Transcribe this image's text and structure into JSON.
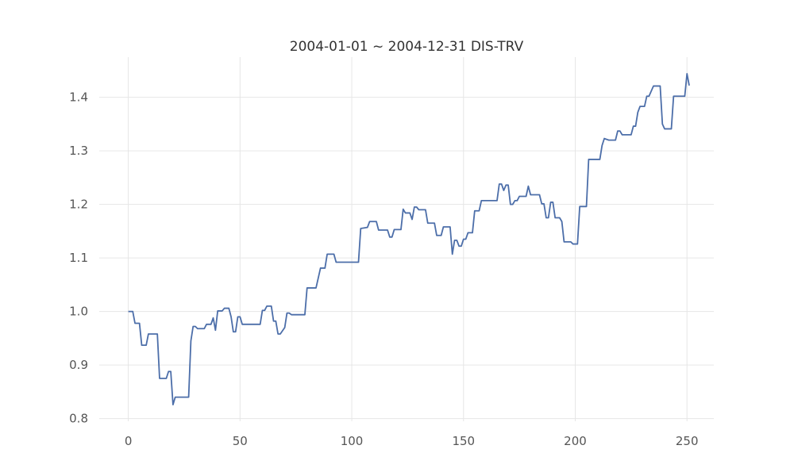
{
  "chart_data": {
    "type": "line",
    "title": "2004-01-01 ~ 2004-12-31 DIS-TRV",
    "xlabel": "",
    "ylabel": "",
    "xlim": [
      -13,
      262
    ],
    "ylim": [
      0.795,
      1.475
    ],
    "grid": true,
    "line_color": "#4c6ea9",
    "x_ticks": [
      0,
      50,
      100,
      150,
      200,
      250
    ],
    "y_ticks": [
      0.8,
      0.9,
      1.0,
      1.1,
      1.2,
      1.3,
      1.4
    ],
    "x_tick_labels": [
      "0",
      "50",
      "100",
      "150",
      "200",
      "250"
    ],
    "y_tick_labels": [
      "0.8",
      "0.9",
      "1.0",
      "1.1",
      "1.2",
      "1.3",
      "1.4"
    ],
    "series": [
      {
        "name": "",
        "points": [
          [
            0,
            1.0
          ],
          [
            2,
            1.0
          ],
          [
            3,
            0.978
          ],
          [
            5,
            0.978
          ],
          [
            6,
            0.937
          ],
          [
            8,
            0.937
          ],
          [
            9,
            0.958
          ],
          [
            13,
            0.958
          ],
          [
            14,
            0.875
          ],
          [
            17,
            0.875
          ],
          [
            18,
            0.888
          ],
          [
            19,
            0.888
          ],
          [
            20,
            0.826
          ],
          [
            21,
            0.84
          ],
          [
            27,
            0.84
          ],
          [
            28,
            0.945
          ],
          [
            29,
            0.972
          ],
          [
            30,
            0.972
          ],
          [
            31,
            0.968
          ],
          [
            34,
            0.968
          ],
          [
            35,
            0.976
          ],
          [
            37,
            0.976
          ],
          [
            38,
            0.988
          ],
          [
            39,
            0.965
          ],
          [
            40,
            1.001
          ],
          [
            42,
            1.001
          ],
          [
            43,
            1.006
          ],
          [
            45,
            1.006
          ],
          [
            46,
            0.99
          ],
          [
            47,
            0.962
          ],
          [
            48,
            0.962
          ],
          [
            49,
            0.99
          ],
          [
            50,
            0.99
          ],
          [
            51,
            0.976
          ],
          [
            59,
            0.976
          ],
          [
            60,
            1.002
          ],
          [
            61,
            1.002
          ],
          [
            62,
            1.01
          ],
          [
            64,
            1.01
          ],
          [
            65,
            0.982
          ],
          [
            66,
            0.982
          ],
          [
            67,
            0.958
          ],
          [
            68,
            0.958
          ],
          [
            70,
            0.97
          ],
          [
            71,
            0.997
          ],
          [
            72,
            0.997
          ],
          [
            73,
            0.994
          ],
          [
            79,
            0.994
          ],
          [
            80,
            1.044
          ],
          [
            84,
            1.044
          ],
          [
            86,
            1.081
          ],
          [
            88,
            1.081
          ],
          [
            89,
            1.107
          ],
          [
            92,
            1.107
          ],
          [
            93,
            1.092
          ],
          [
            103,
            1.092
          ],
          [
            104,
            1.155
          ],
          [
            107,
            1.157
          ],
          [
            108,
            1.168
          ],
          [
            111,
            1.168
          ],
          [
            112,
            1.152
          ],
          [
            116,
            1.152
          ],
          [
            117,
            1.139
          ],
          [
            118,
            1.139
          ],
          [
            119,
            1.153
          ],
          [
            122,
            1.153
          ],
          [
            123,
            1.191
          ],
          [
            124,
            1.184
          ],
          [
            126,
            1.184
          ],
          [
            127,
            1.172
          ],
          [
            128,
            1.195
          ],
          [
            129,
            1.195
          ],
          [
            130,
            1.19
          ],
          [
            133,
            1.19
          ],
          [
            134,
            1.165
          ],
          [
            137,
            1.165
          ],
          [
            138,
            1.142
          ],
          [
            140,
            1.142
          ],
          [
            141,
            1.158
          ],
          [
            144,
            1.158
          ],
          [
            145,
            1.107
          ],
          [
            146,
            1.133
          ],
          [
            147,
            1.133
          ],
          [
            148,
            1.122
          ],
          [
            149,
            1.122
          ],
          [
            150,
            1.135
          ],
          [
            151,
            1.135
          ],
          [
            152,
            1.147
          ],
          [
            154,
            1.147
          ],
          [
            155,
            1.188
          ],
          [
            157,
            1.188
          ],
          [
            158,
            1.207
          ],
          [
            165,
            1.207
          ],
          [
            166,
            1.238
          ],
          [
            167,
            1.238
          ],
          [
            168,
            1.226
          ],
          [
            169,
            1.236
          ],
          [
            170,
            1.236
          ],
          [
            171,
            1.2
          ],
          [
            172,
            1.2
          ],
          [
            173,
            1.207
          ],
          [
            174,
            1.207
          ],
          [
            175,
            1.215
          ],
          [
            178,
            1.215
          ],
          [
            179,
            1.234
          ],
          [
            180,
            1.218
          ],
          [
            184,
            1.218
          ],
          [
            185,
            1.201
          ],
          [
            186,
            1.201
          ],
          [
            187,
            1.175
          ],
          [
            188,
            1.175
          ],
          [
            189,
            1.204
          ],
          [
            190,
            1.204
          ],
          [
            191,
            1.175
          ],
          [
            193,
            1.175
          ],
          [
            194,
            1.168
          ],
          [
            195,
            1.13
          ],
          [
            198,
            1.13
          ],
          [
            199,
            1.126
          ],
          [
            201,
            1.126
          ],
          [
            202,
            1.196
          ],
          [
            205,
            1.196
          ],
          [
            206,
            1.284
          ],
          [
            211,
            1.284
          ],
          [
            212,
            1.31
          ],
          [
            213,
            1.323
          ],
          [
            215,
            1.32
          ],
          [
            218,
            1.32
          ],
          [
            219,
            1.337
          ],
          [
            220,
            1.337
          ],
          [
            221,
            1.33
          ],
          [
            225,
            1.33
          ],
          [
            226,
            1.346
          ],
          [
            227,
            1.346
          ],
          [
            228,
            1.372
          ],
          [
            229,
            1.383
          ],
          [
            231,
            1.383
          ],
          [
            232,
            1.402
          ],
          [
            233,
            1.402
          ],
          [
            235,
            1.421
          ],
          [
            238,
            1.421
          ],
          [
            239,
            1.35
          ],
          [
            240,
            1.341
          ],
          [
            243,
            1.341
          ],
          [
            244,
            1.402
          ],
          [
            249,
            1.402
          ],
          [
            250,
            1.444
          ],
          [
            251,
            1.422
          ]
        ]
      }
    ]
  }
}
